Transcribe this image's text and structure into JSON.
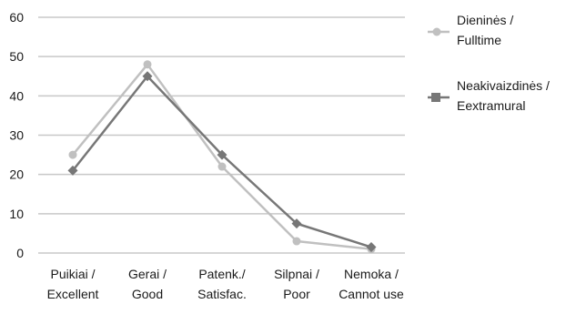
{
  "chart_data": {
    "type": "line",
    "title": "",
    "xlabel": "",
    "ylabel": "",
    "ylim": [
      0,
      60
    ],
    "yticks": [
      0,
      10,
      20,
      30,
      40,
      50,
      60
    ],
    "grid": true,
    "legend_position": "right",
    "categories": [
      [
        "Puikiai /",
        "Excellent"
      ],
      [
        "Gerai /",
        "Good"
      ],
      [
        "Patenk./",
        "Satisfac."
      ],
      [
        "Silpnai /",
        "Poor"
      ],
      [
        "Nemoka /",
        "Cannot use"
      ]
    ],
    "series": [
      {
        "name": [
          "Dieninės /",
          "Fulltime"
        ],
        "values": [
          25,
          48,
          22,
          3,
          1
        ],
        "color": "#c0c0c0",
        "marker": "circle"
      },
      {
        "name": [
          "Neakivaizdinės /",
          "Eextramural"
        ],
        "values": [
          21,
          45,
          25,
          7.5,
          1.5
        ],
        "color": "#777777",
        "marker": "diamond"
      }
    ]
  }
}
